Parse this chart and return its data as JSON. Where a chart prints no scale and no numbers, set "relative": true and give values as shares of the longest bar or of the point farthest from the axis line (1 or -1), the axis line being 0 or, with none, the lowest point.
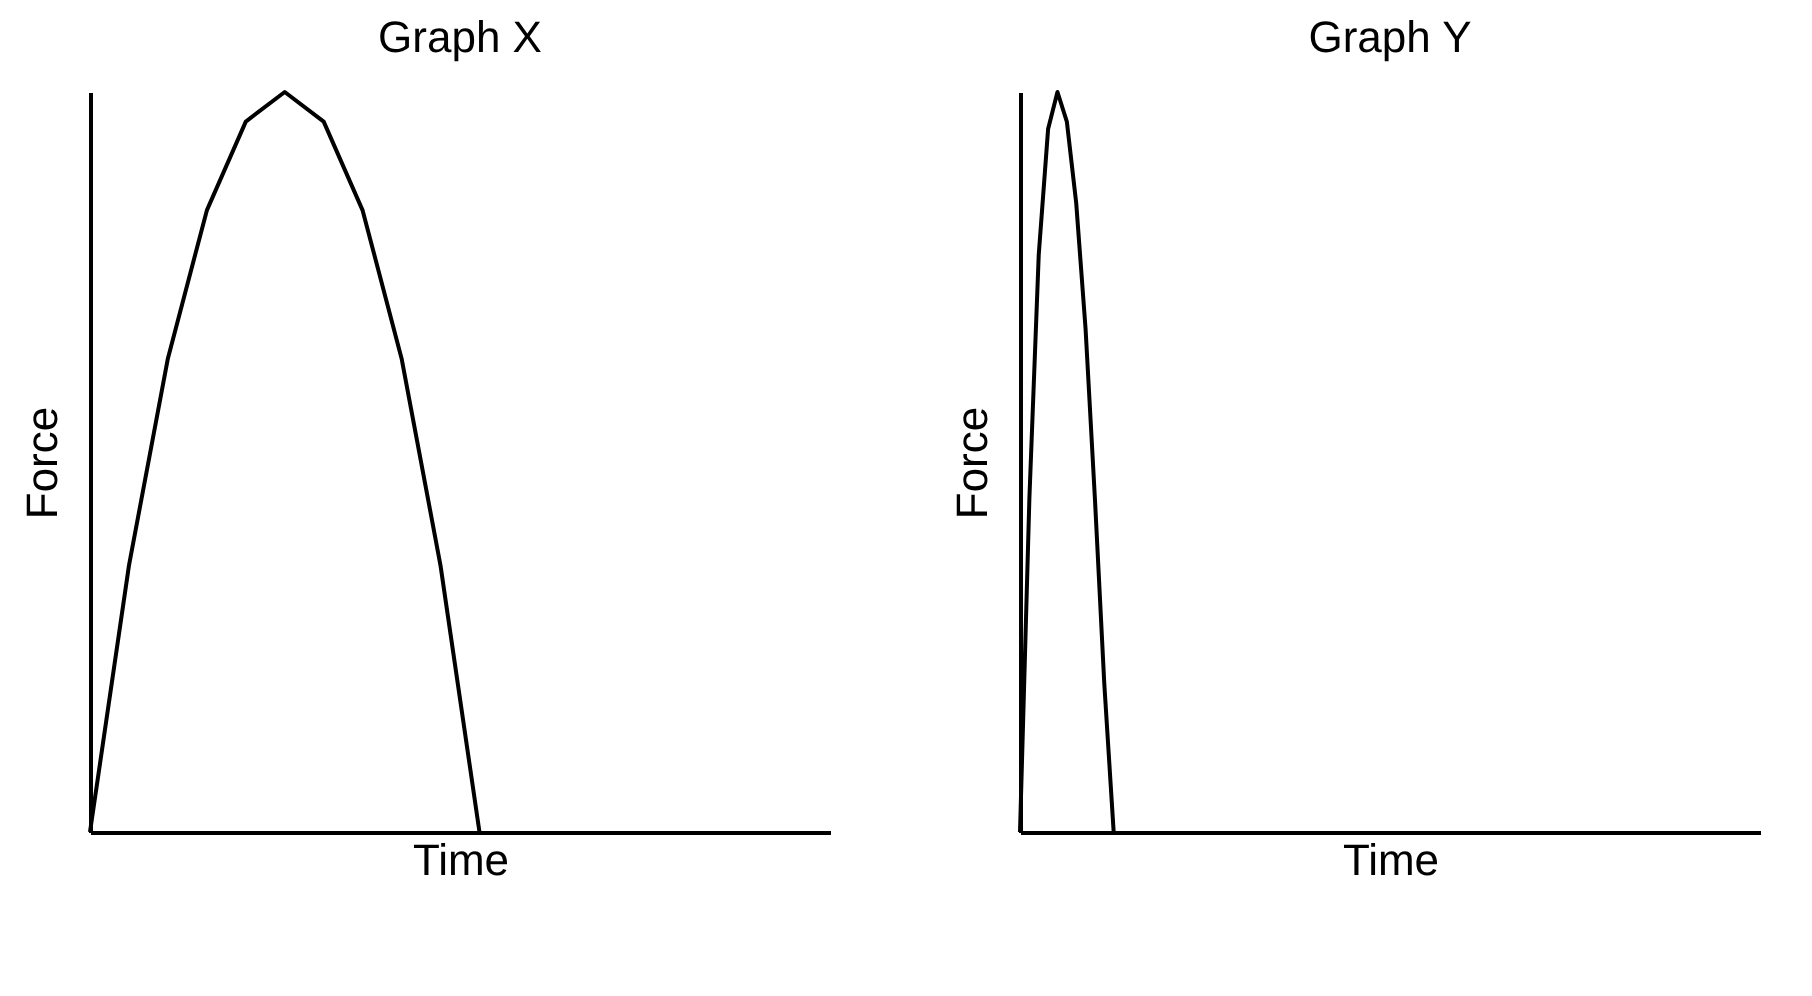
{
  "chart_data": [
    {
      "type": "line",
      "title": "Graph X",
      "xlabel": "Time",
      "ylabel": "Force",
      "relative": true,
      "categories": [
        null,
        null,
        null,
        null,
        null,
        null,
        null,
        null,
        null,
        null,
        null,
        null,
        null,
        null,
        null,
        null,
        null,
        null,
        null,
        null
      ],
      "series": [
        {
          "color": "#000000",
          "values": [
            0,
            0.36,
            0.64,
            0.84,
            0.96,
            1,
            0.96,
            0.84,
            0.64,
            0.36,
            0,
            null,
            null,
            null,
            null,
            null,
            null,
            null,
            null,
            null
          ]
        }
      ]
    },
    {
      "type": "line",
      "title": "Graph Y",
      "xlabel": "Time",
      "ylabel": "Force",
      "relative": true,
      "categories": [
        null,
        null,
        null,
        null,
        null,
        null,
        null,
        null,
        null,
        null,
        null,
        null,
        null,
        null,
        null,
        null,
        null,
        null,
        null,
        null,
        null,
        null,
        null,
        null,
        null,
        null,
        null,
        null,
        null,
        null,
        null,
        null,
        null,
        null,
        null,
        null,
        null,
        null,
        null,
        null,
        null,
        null,
        null,
        null,
        null,
        null,
        null,
        null,
        null,
        null,
        null,
        null,
        null,
        null,
        null,
        null,
        null,
        null,
        null,
        null,
        null,
        null,
        null,
        null,
        null,
        null,
        null,
        null,
        null,
        null,
        null,
        null,
        null,
        null,
        null,
        null,
        null,
        null,
        null,
        null
      ],
      "series": [
        {
          "color": "#000000",
          "values": [
            0,
            0.45,
            0.78,
            0.95,
            1,
            0.96,
            0.85,
            0.68,
            0.45,
            0.2,
            0,
            null,
            null,
            null,
            null,
            null,
            null,
            null,
            null,
            null,
            null,
            null,
            null,
            null,
            null,
            null,
            null,
            null,
            null,
            null,
            null,
            null,
            null,
            null,
            null,
            null,
            null,
            null,
            null,
            null,
            null,
            null,
            null,
            null,
            null,
            null,
            null,
            null,
            null,
            null,
            null,
            null,
            null,
            null,
            null,
            null,
            null,
            null,
            null,
            null,
            null,
            null,
            null,
            null,
            null,
            null,
            null,
            null,
            null,
            null,
            null,
            null,
            null,
            null,
            null,
            null,
            null,
            null,
            null,
            null
          ]
        }
      ]
    }
  ]
}
